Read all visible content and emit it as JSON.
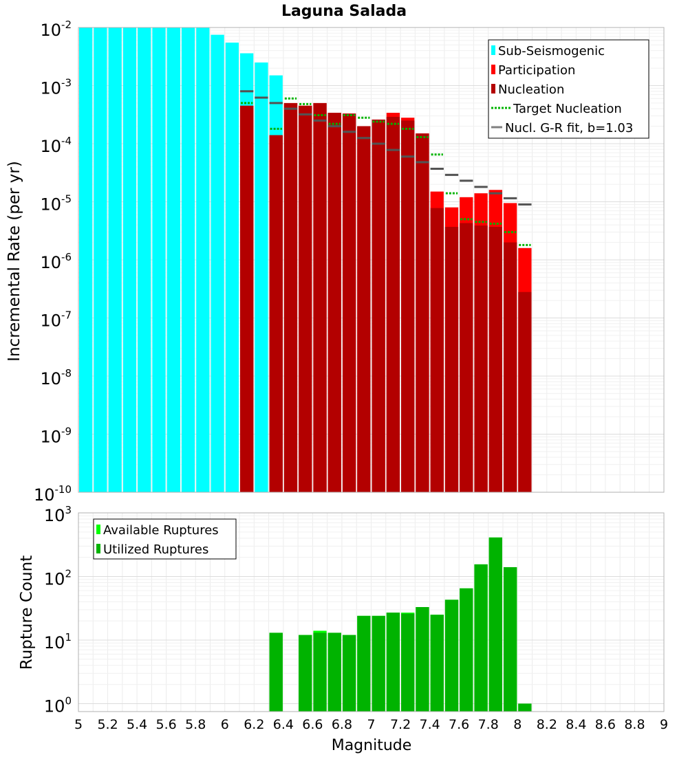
{
  "chart_data": [
    {
      "type": "bar",
      "title": "Laguna Salada",
      "xlabel": "",
      "ylabel": "Incremental Rate (per yr)",
      "y_scale": "log",
      "ylim": [
        1e-10,
        0.01
      ],
      "xlim": [
        5,
        9
      ],
      "y_tick_labels": [
        {
          "base": "10",
          "exp": "-10",
          "value": 1e-10
        },
        {
          "base": "10",
          "exp": "-9",
          "value": 1e-09
        },
        {
          "base": "10",
          "exp": "-8",
          "value": 1e-08
        },
        {
          "base": "10",
          "exp": "-7",
          "value": 1e-07
        },
        {
          "base": "10",
          "exp": "-6",
          "value": 1e-06
        },
        {
          "base": "10",
          "exp": "-5",
          "value": 1e-05
        },
        {
          "base": "10",
          "exp": "-4",
          "value": 0.0001
        },
        {
          "base": "10",
          "exp": "-3",
          "value": 0.001
        },
        {
          "base": "10",
          "exp": "-2",
          "value": 0.01
        }
      ],
      "grid": true,
      "legend_position": "top-right",
      "series": [
        {
          "name": "Sub-Seismogenic",
          "kind": "bar",
          "color": "#00ffff",
          "x": [
            5.05,
            5.15,
            5.25,
            5.35,
            5.45,
            5.55,
            5.65,
            5.75,
            5.85,
            5.95,
            6.05,
            6.15,
            6.25,
            6.35
          ],
          "values": [
            0.01,
            0.01,
            0.01,
            0.01,
            0.01,
            0.01,
            0.01,
            0.01,
            0.01,
            0.0075,
            0.0055,
            0.0036,
            0.0025,
            0.0015
          ]
        },
        {
          "name": "Participation",
          "kind": "bar",
          "color": "#ff0000",
          "x": [
            6.15,
            6.35,
            6.45,
            6.55,
            6.65,
            6.75,
            6.85,
            6.95,
            7.05,
            7.15,
            7.25,
            7.35,
            7.45,
            7.55,
            7.65,
            7.75,
            7.85,
            7.95,
            8.05
          ],
          "values": [
            0.00045,
            0.00014,
            0.0005,
            0.00045,
            0.0005,
            0.00034,
            0.00033,
            0.0002,
            0.00026,
            0.00034,
            0.00028,
            0.00015,
            1.5e-05,
            8e-06,
            1.2e-05,
            1.4e-05,
            1.6e-05,
            9.5e-06,
            1.6e-06
          ]
        },
        {
          "name": "Nucleation",
          "kind": "bar",
          "color": "#b30000",
          "x": [
            6.15,
            6.35,
            6.45,
            6.55,
            6.65,
            6.75,
            6.85,
            6.95,
            7.05,
            7.15,
            7.25,
            7.35,
            7.45,
            7.55,
            7.65,
            7.75,
            7.85,
            7.95,
            8.05
          ],
          "values": [
            0.00045,
            0.00014,
            0.0005,
            0.00045,
            0.0005,
            0.00034,
            0.00033,
            0.0002,
            0.00026,
            0.00029,
            0.00025,
            0.00015,
            7.8e-06,
            3.7e-06,
            4.3e-06,
            3.9e-06,
            3.7e-06,
            2e-06,
            2.8e-07
          ]
        },
        {
          "name": "Target Nucleation",
          "kind": "dotted-step",
          "color": "#00b300",
          "x": [
            6.15,
            6.35,
            6.45,
            6.55,
            6.65,
            6.75,
            6.85,
            6.95,
            7.05,
            7.15,
            7.25,
            7.35,
            7.45,
            7.55,
            7.65,
            7.75,
            7.85,
            7.95,
            8.05
          ],
          "values": [
            0.0005,
            0.00018,
            0.0006,
            0.00048,
            0.00031,
            0.00022,
            0.00031,
            0.00028,
            0.00024,
            0.00022,
            0.00018,
            0.00013,
            6.5e-05,
            1.4e-05,
            5e-06,
            4.5e-06,
            4.2e-06,
            3e-06,
            1.8e-06
          ]
        },
        {
          "name": "Nucl. G-R fit, b=1.03",
          "kind": "step",
          "color": "#808080",
          "x": [
            6.15,
            6.25,
            6.35,
            6.45,
            6.55,
            6.65,
            6.75,
            6.85,
            6.95,
            7.05,
            7.15,
            7.25,
            7.35,
            7.45,
            7.55,
            7.65,
            7.75,
            7.85,
            7.95,
            8.05
          ],
          "values": [
            0.0008,
            0.00062,
            0.0005,
            0.0004,
            0.00032,
            0.00025,
            0.0002,
            0.00016,
            0.000125,
            0.0001,
            7.8e-05,
            6e-05,
            4.8e-05,
            3.7e-05,
            2.9e-05,
            2.3e-05,
            1.8e-05,
            1.4e-05,
            1.15e-05,
            9e-06
          ]
        }
      ]
    },
    {
      "type": "bar",
      "title": "",
      "xlabel": "Magnitude",
      "ylabel": "Rupture Count",
      "y_scale": "log",
      "ylim": [
        0.75,
        1000
      ],
      "xlim": [
        5,
        9
      ],
      "x_ticks": [
        5,
        5.2,
        5.4,
        5.6,
        5.8,
        6,
        6.2,
        6.4,
        6.6,
        6.8,
        7,
        7.2,
        7.4,
        7.6,
        7.8,
        8,
        8.2,
        8.4,
        8.6,
        8.8,
        9
      ],
      "x_tick_labels": [
        "5",
        "5.2",
        "5.4",
        "5.6",
        "5.8",
        "6",
        "6.2",
        "6.4",
        "6.6",
        "6.8",
        "7",
        "7.2",
        "7.4",
        "7.6",
        "7.8",
        "8",
        "8.2",
        "8.4",
        "8.6",
        "8.8",
        "9"
      ],
      "y_tick_labels": [
        {
          "base": "10",
          "exp": "0",
          "value": 1
        },
        {
          "base": "10",
          "exp": "1",
          "value": 10
        },
        {
          "base": "10",
          "exp": "2",
          "value": 100
        },
        {
          "base": "10",
          "exp": "3",
          "value": 1000
        }
      ],
      "grid": true,
      "legend_position": "top-left",
      "series": [
        {
          "name": "Available Ruptures",
          "kind": "bar",
          "color": "#00ff00",
          "x": [
            6.35,
            6.55,
            6.65,
            6.75,
            6.85,
            6.95,
            7.05,
            7.15,
            7.25,
            7.35,
            7.45,
            7.55,
            7.65,
            7.75,
            7.85,
            7.95,
            8.05
          ],
          "values": [
            13,
            12,
            14,
            13,
            12,
            24,
            24,
            27,
            27,
            33,
            25,
            43,
            65,
            155,
            410,
            140,
            1
          ]
        },
        {
          "name": "Utilized Ruptures",
          "kind": "bar",
          "color": "#00b300",
          "x": [
            6.35,
            6.55,
            6.65,
            6.75,
            6.85,
            6.95,
            7.05,
            7.15,
            7.25,
            7.35,
            7.45,
            7.55,
            7.65,
            7.75,
            7.85,
            7.95,
            8.05
          ],
          "values": [
            13,
            12,
            13,
            13,
            12,
            24,
            24,
            27,
            26,
            33,
            25,
            43,
            65,
            155,
            410,
            140,
            1
          ]
        }
      ]
    }
  ]
}
